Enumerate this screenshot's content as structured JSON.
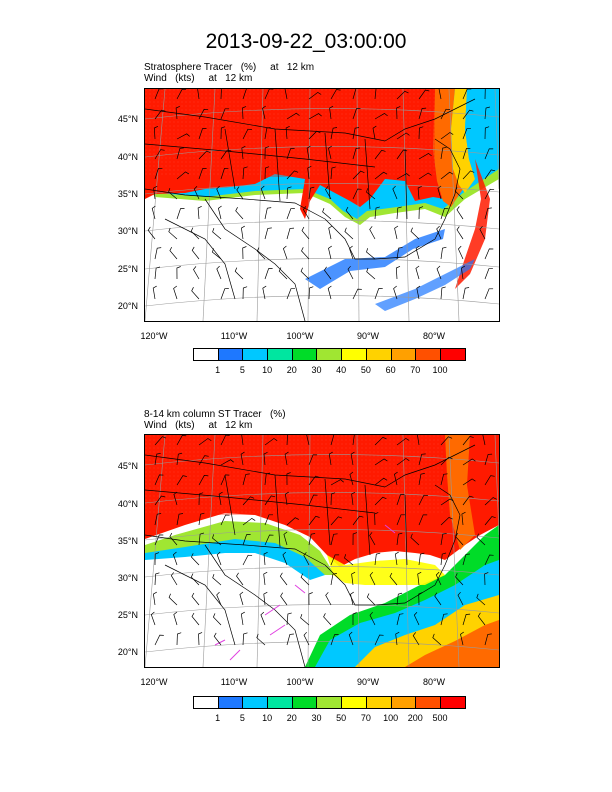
{
  "title": "2013-09-22_03:00:00",
  "panels": [
    {
      "subtitle_line1": "Stratosphere Tracer   (%)     at   12 km",
      "subtitle_line2": "Wind   (kts)     at   12 km",
      "colorbar_labels": [
        "1",
        "5",
        "10",
        "20",
        "30",
        "40",
        "50",
        "60",
        "70",
        "100"
      ]
    },
    {
      "subtitle_line1": "8-14 km column ST Tracer   (%)",
      "subtitle_line2": "Wind   (kts)     at   12 km",
      "colorbar_labels": [
        "1",
        "5",
        "10",
        "20",
        "30",
        "50",
        "70",
        "100",
        "200",
        "500"
      ]
    }
  ],
  "lat_labels": [
    "45°N",
    "40°N",
    "35°N",
    "30°N",
    "25°N",
    "20°N"
  ],
  "lon_labels": [
    "120°W",
    "110°W",
    "100°W",
    "90°W",
    "80°W"
  ],
  "colorbar_colors": [
    "#ffffff",
    "#1e78ff",
    "#00c8ff",
    "#00e6a0",
    "#00dc28",
    "#a0e632",
    "#ffff00",
    "#ffd200",
    "#ffa000",
    "#ff5000",
    "#ff0000"
  ]
}
